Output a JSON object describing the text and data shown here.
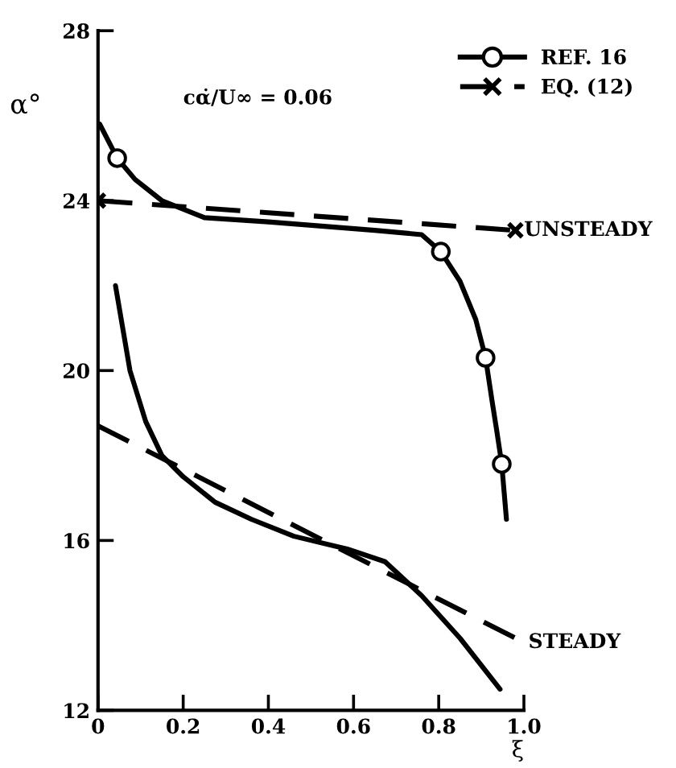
{
  "chart_data": {
    "type": "line",
    "xlabel": "ξ",
    "ylabel": "α°",
    "xlim": [
      0,
      1.0
    ],
    "ylim": [
      12,
      28
    ],
    "xticks": [
      {
        "value": 0,
        "label": "0"
      },
      0.2,
      0.4,
      0.6,
      0.8,
      {
        "value": 1.0,
        "label": "1.0"
      }
    ],
    "yticks": [
      12,
      16,
      20,
      24,
      28
    ],
    "grid": false,
    "legend": "top right",
    "series": [
      {
        "color": "#000000",
        "line_style": "solid",
        "x": [
          0.004,
          0.045,
          0.087,
          0.15,
          0.25,
          0.4,
          0.65,
          0.76,
          0.805,
          0.85,
          0.887,
          0.91,
          0.925,
          0.936,
          0.948,
          0.959
        ],
        "values": [
          25.8,
          25.0,
          24.5,
          24.0,
          23.6,
          23.5,
          23.3,
          23.2,
          22.8,
          22.1,
          21.2,
          20.3,
          19.3,
          18.6,
          17.8,
          16.5
        ]
      },
      {
        "name": "REF. 16",
        "type": "scatter",
        "color": "#000000",
        "marker": "circle",
        "x": [
          0.045,
          0.805,
          0.91,
          0.948
        ],
        "values": [
          25.0,
          22.8,
          20.3,
          17.8
        ]
      },
      {
        "name": "EQ. (12)",
        "color": "#000000",
        "line_style": "dashed",
        "marker": "cross",
        "x": [
          0,
          0.98
        ],
        "values": [
          24.0,
          23.3
        ]
      },
      {
        "color": "#000000",
        "line_style": "solid",
        "x": [
          0.041,
          0.075,
          0.112,
          0.15,
          0.2,
          0.275,
          0.36,
          0.46,
          0.585,
          0.674,
          0.76,
          0.85,
          0.944
        ],
        "values": [
          22.0,
          20.0,
          18.8,
          18.0,
          17.5,
          16.9,
          16.5,
          16.1,
          15.8,
          15.5,
          14.7,
          13.7,
          12.5
        ]
      },
      {
        "color": "#000000",
        "line_style": "dashed",
        "x": [
          0,
          1.0
        ],
        "values": [
          18.7,
          13.6
        ]
      }
    ],
    "annotations": [
      "cα̇/U∞ = 0.06",
      {
        "text": "UNSTEADY",
        "x": 0.99,
        "y": 23.3
      },
      {
        "text": "STEADY",
        "x": 1.0,
        "y": 13.6
      }
    ]
  }
}
